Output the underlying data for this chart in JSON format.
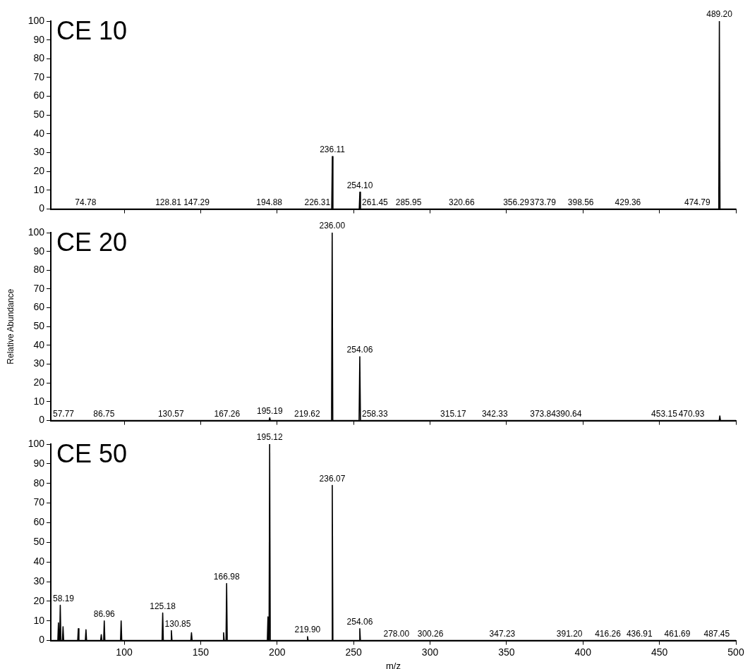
{
  "chart_data": [
    {
      "type": "line",
      "title": "CE 10",
      "xlim": [
        52,
        500
      ],
      "xticks": [
        100,
        150,
        200,
        250,
        300,
        350,
        400,
        450,
        500
      ],
      "ylim": [
        0,
        100
      ],
      "yticks": [
        0,
        10,
        20,
        30,
        40,
        50,
        60,
        70,
        80,
        90,
        100
      ],
      "tick_labels": "y",
      "grid": false,
      "marker": "none",
      "line_style": "solid",
      "series": [
        {
          "color": "#000000",
          "x": [
            52,
            235.7,
            236.11,
            236.5,
            253.7,
            254.1,
            254.5,
            488.8,
            489.2,
            489.6,
            500
          ],
          "values": [
            0,
            0,
            28,
            0,
            0,
            9,
            0,
            0,
            100,
            0,
            0
          ]
        }
      ],
      "annotations": [
        {
          "text": "74.78",
          "x": 74.78,
          "y": 0
        },
        {
          "text": "128.81",
          "x": 128.81,
          "y": 0
        },
        {
          "text": "147.29",
          "x": 147.29,
          "y": 0
        },
        {
          "text": "194.88",
          "x": 194.88,
          "y": 0
        },
        {
          "text": "226.31",
          "x": 226.31,
          "y": 0
        },
        {
          "text": "236.11",
          "x": 236.11,
          "y": 28
        },
        {
          "text": "254.10",
          "x": 254.1,
          "y": 9
        },
        {
          "text": "261.45",
          "x": 261.45,
          "y": 0
        },
        {
          "text": "285.95",
          "x": 285.95,
          "y": 0
        },
        {
          "text": "320.66",
          "x": 320.66,
          "y": 0
        },
        {
          "text": "356.29",
          "x": 356.29,
          "y": 0
        },
        {
          "text": "373.79",
          "x": 373.79,
          "y": 0
        },
        {
          "text": "398.56",
          "x": 398.56,
          "y": 0
        },
        {
          "text": "429.36",
          "x": 429.36,
          "y": 0
        },
        {
          "text": "474.79",
          "x": 474.79,
          "y": 0
        },
        {
          "text": "489.20",
          "x": 489.2,
          "y": 100
        }
      ]
    },
    {
      "type": "line",
      "title": "CE 20",
      "ylabel": "Relative Abundance",
      "xlim": [
        52,
        500
      ],
      "xticks": [
        100,
        150,
        200,
        250,
        300,
        350,
        400,
        450,
        500
      ],
      "ylim": [
        0,
        100
      ],
      "yticks": [
        0,
        10,
        20,
        30,
        40,
        50,
        60,
        70,
        80,
        90,
        100
      ],
      "tick_labels": "y",
      "grid": false,
      "marker": "none",
      "line_style": "solid",
      "series": [
        {
          "color": "#000000",
          "x": [
            52,
            194.8,
            195.19,
            195.6,
            235.6,
            236,
            236.4,
            253.6,
            254.06,
            254.5,
            489.1,
            489.5,
            489.9,
            500
          ],
          "values": [
            0,
            0,
            1.5,
            0,
            0,
            100,
            0,
            0,
            34,
            0,
            0,
            2.5,
            0,
            0
          ]
        }
      ],
      "annotations": [
        {
          "text": "57.77",
          "x": 57.77,
          "y": 0
        },
        {
          "text": "86.75",
          "x": 86.75,
          "y": 0
        },
        {
          "text": "130.57",
          "x": 130.57,
          "y": 0
        },
        {
          "text": "167.26",
          "x": 167.26,
          "y": 0
        },
        {
          "text": "195.19",
          "x": 195.19,
          "y": 1.5
        },
        {
          "text": "219.62",
          "x": 219.62,
          "y": 0
        },
        {
          "text": "236.00",
          "x": 236,
          "y": 100
        },
        {
          "text": "254.06",
          "x": 254.06,
          "y": 34
        },
        {
          "text": "258.33",
          "x": 258.33,
          "y": 0
        },
        {
          "text": "315.17",
          "x": 315.17,
          "y": 0
        },
        {
          "text": "342.33",
          "x": 342.33,
          "y": 0
        },
        {
          "text": "373.84",
          "x": 373.84,
          "y": 0
        },
        {
          "text": "390.64",
          "x": 390.64,
          "y": 0
        },
        {
          "text": "453.15",
          "x": 453.15,
          "y": 0
        },
        {
          "text": "470.93",
          "x": 470.93,
          "y": 0
        }
      ]
    },
    {
      "type": "line",
      "title": "CE 50",
      "xlabel": "m/z",
      "xlim": [
        52,
        500
      ],
      "xticks": [
        100,
        150,
        200,
        250,
        300,
        350,
        400,
        450,
        500
      ],
      "ylim": [
        0,
        100
      ],
      "yticks": [
        0,
        10,
        20,
        30,
        40,
        50,
        60,
        70,
        80,
        90,
        100
      ],
      "grid": false,
      "marker": "none",
      "line_style": "solid",
      "series": [
        {
          "color": "#000000",
          "x": [
            52,
            56.6,
            57,
            57.4,
            57.8,
            58.19,
            58.6,
            59.6,
            60,
            60.4,
            69.6,
            70,
            70.4,
            74.6,
            75,
            75.4,
            84.6,
            85,
            85.4,
            86.56,
            86.96,
            87.36,
            97.6,
            98,
            98.4,
            124.78,
            125.18,
            125.58,
            130.45,
            130.85,
            131.25,
            143.6,
            144,
            144.4,
            164.6,
            165,
            165.4,
            166.58,
            166.98,
            167.38,
            193.6,
            194,
            194.4,
            194.72,
            195.12,
            195.52,
            219.5,
            219.9,
            220.3,
            235.67,
            236.07,
            236.47,
            253.66,
            254.06,
            254.46,
            500
          ],
          "values": [
            0,
            0,
            9,
            0,
            0,
            18,
            0,
            0,
            7,
            0,
            0,
            6,
            0,
            0,
            5.5,
            0,
            0,
            3,
            0,
            0,
            10,
            0,
            0,
            10,
            0,
            0,
            14,
            0,
            0,
            5,
            0,
            0,
            4,
            0,
            0,
            4,
            0,
            0,
            29,
            0,
            0,
            12,
            0,
            0,
            100,
            0,
            0,
            2,
            0,
            0,
            79,
            0,
            0,
            6,
            0,
            0
          ]
        }
      ],
      "annotations": [
        {
          "text": "58.19",
          "x": 58.19,
          "y": 18
        },
        {
          "text": "86.96",
          "x": 86.96,
          "y": 10
        },
        {
          "text": "125.18",
          "x": 125.18,
          "y": 14
        },
        {
          "text": "130.85",
          "x": 130.85,
          "y": 5
        },
        {
          "text": "166.98",
          "x": 166.98,
          "y": 29
        },
        {
          "text": "195.12",
          "x": 195.12,
          "y": 100
        },
        {
          "text": "219.90",
          "x": 219.9,
          "y": 2
        },
        {
          "text": "236.07",
          "x": 236.07,
          "y": 79
        },
        {
          "text": "254.06",
          "x": 254.06,
          "y": 6
        },
        {
          "text": "278.00",
          "x": 278,
          "y": 0
        },
        {
          "text": "300.26",
          "x": 300.26,
          "y": 0
        },
        {
          "text": "347.23",
          "x": 347.23,
          "y": 0
        },
        {
          "text": "391.20",
          "x": 391.2,
          "y": 0
        },
        {
          "text": "416.26",
          "x": 416.26,
          "y": 0
        },
        {
          "text": "436.91",
          "x": 436.91,
          "y": 0
        },
        {
          "text": "461.69",
          "x": 461.69,
          "y": 0
        },
        {
          "text": "487.45",
          "x": 487.45,
          "y": 0
        }
      ]
    }
  ]
}
